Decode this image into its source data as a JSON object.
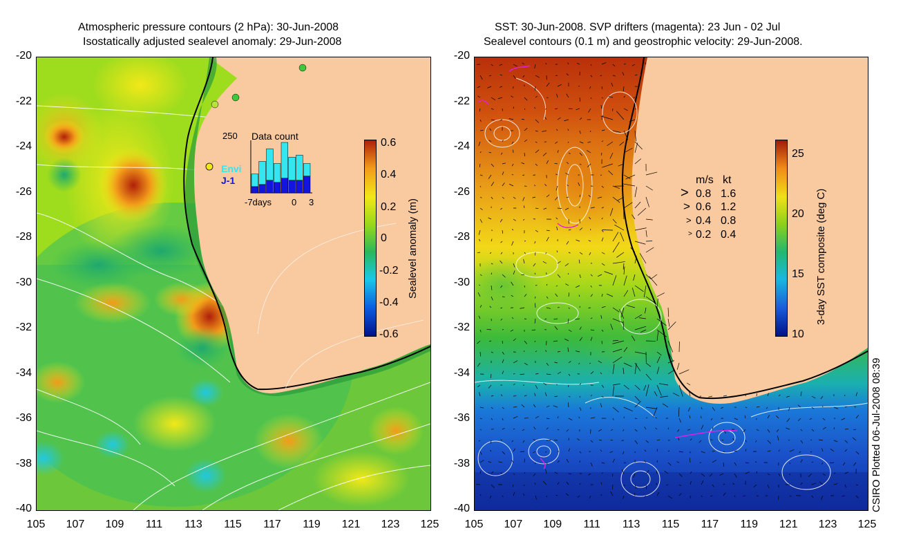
{
  "left_panel": {
    "title_line1": "Atmospheric pressure contours (2 hPa): 30-Jun-2008",
    "title_line2": "Isostatically adjusted sealevel anomaly: 29-Jun-2008",
    "colorbar": {
      "label": "Sealevel anomaly (m)",
      "ticks": [
        "0.6",
        "0.4",
        "0.2",
        "0",
        "-0.2",
        "-0.4",
        "-0.6"
      ],
      "range": [
        -0.6,
        0.6
      ],
      "colors": [
        "#00118a",
        "#0a5be0",
        "#19c8e8",
        "#2bb85a",
        "#98d81a",
        "#f2e818",
        "#f29a1a",
        "#b0200a"
      ]
    },
    "inset": {
      "title": "Data count",
      "max_label": "250",
      "x_labels": [
        "-7days",
        "0",
        "3"
      ],
      "series": [
        {
          "name": "Envi",
          "color": "#33e6ef"
        },
        {
          "name": "J-1",
          "color": "#1414e0"
        }
      ],
      "envi_values": [
        60,
        110,
        150,
        90,
        170,
        110,
        120,
        60
      ],
      "j1_values": [
        30,
        40,
        60,
        50,
        70,
        60,
        60,
        80
      ],
      "ylim": [
        0,
        250
      ]
    }
  },
  "right_panel": {
    "title_line1": "SST: 30-Jun-2008. SVP drifters (magenta): 23 Jun - 02 Jul",
    "title_line2": "Sealevel contours (0.1 m) and geostrophic velocity: 29-Jun-2008.",
    "colorbar": {
      "label": "3-day SST composite (deg C)",
      "ticks": [
        "25",
        "20",
        "15",
        "10"
      ],
      "range": [
        10,
        26
      ],
      "colors": [
        "#00118a",
        "#1a5ad8",
        "#19b8e0",
        "#23b870",
        "#8cd01a",
        "#f0e018",
        "#f08a18",
        "#a01a0a"
      ]
    },
    "velocity_legend": {
      "header_ms": "m/s",
      "header_kt": "kt",
      "rows": [
        {
          "ms": "0.8",
          "kt": "1.6"
        },
        {
          "ms": "0.6",
          "kt": "1.2"
        },
        {
          "ms": "0.4",
          "kt": "0.8"
        },
        {
          "ms": "0.2",
          "kt": "0.4"
        }
      ]
    }
  },
  "axes": {
    "y_ticks": [
      "-20",
      "-22",
      "-24",
      "-26",
      "-28",
      "-30",
      "-32",
      "-34",
      "-36",
      "-38",
      "-40"
    ],
    "x_ticks": [
      "105",
      "107",
      "109",
      "111",
      "113",
      "115",
      "117",
      "119",
      "121",
      "123",
      "125"
    ],
    "lon_range": [
      105,
      125
    ],
    "lat_range": [
      -40,
      -20
    ]
  },
  "footer": "CSIRO Plotted 06-Jul-2008 08:39",
  "land_color": "#f9c9a0"
}
